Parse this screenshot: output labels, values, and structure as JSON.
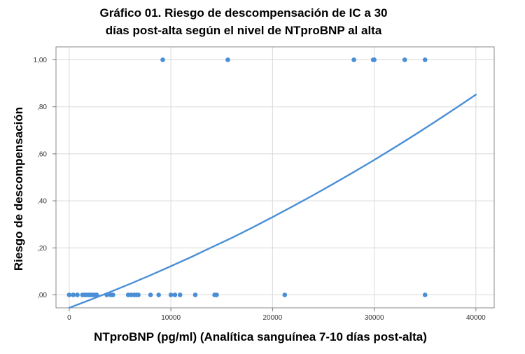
{
  "chart_data": {
    "type": "scatter",
    "title_lines": [
      "Gráfico 01. Riesgo de descompensación de IC a 30",
      "días post-alta según el nivel de NTproBNP al alta"
    ],
    "xlabel": "NTproBNP (pg/ml) (Analítica sanguínea 7-10 días post-alta)",
    "ylabel": "Riesgo de descompensación",
    "xlim": [
      -1300,
      41800
    ],
    "ylim": [
      -0.055,
      1.055
    ],
    "x_ticks": [
      0,
      10000,
      20000,
      30000,
      40000
    ],
    "x_tick_labels": [
      "0",
      "10000",
      "20000",
      "30000",
      "40000"
    ],
    "y_ticks": [
      0,
      0.2,
      0.4,
      0.6,
      0.8,
      1.0
    ],
    "y_tick_labels": [
      ",00",
      ",20",
      ",40",
      ",60",
      ",80",
      "1,00"
    ],
    "grid": true,
    "point_color": "#4a8fd6",
    "curve_color": "#4a8fd6",
    "points": [
      {
        "x": 0,
        "y": 0
      },
      {
        "x": 400,
        "y": 0
      },
      {
        "x": 800,
        "y": 0
      },
      {
        "x": 1300,
        "y": 0
      },
      {
        "x": 1500,
        "y": 0
      },
      {
        "x": 1700,
        "y": 0
      },
      {
        "x": 1900,
        "y": 0
      },
      {
        "x": 2100,
        "y": 0
      },
      {
        "x": 2300,
        "y": 0
      },
      {
        "x": 2500,
        "y": 0
      },
      {
        "x": 2700,
        "y": 0
      },
      {
        "x": 3700,
        "y": 0
      },
      {
        "x": 4100,
        "y": 0
      },
      {
        "x": 4300,
        "y": 0
      },
      {
        "x": 5800,
        "y": 0
      },
      {
        "x": 6100,
        "y": 0
      },
      {
        "x": 6400,
        "y": 0
      },
      {
        "x": 6600,
        "y": 0
      },
      {
        "x": 6800,
        "y": 0
      },
      {
        "x": 8000,
        "y": 0
      },
      {
        "x": 8800,
        "y": 0
      },
      {
        "x": 10000,
        "y": 0
      },
      {
        "x": 10400,
        "y": 0
      },
      {
        "x": 10900,
        "y": 0
      },
      {
        "x": 12400,
        "y": 0
      },
      {
        "x": 14300,
        "y": 0
      },
      {
        "x": 14500,
        "y": 0
      },
      {
        "x": 21200,
        "y": 0
      },
      {
        "x": 35000,
        "y": 0
      },
      {
        "x": 9200,
        "y": 1
      },
      {
        "x": 15600,
        "y": 1
      },
      {
        "x": 28000,
        "y": 1
      },
      {
        "x": 29900,
        "y": 1
      },
      {
        "x": 30000,
        "y": 1
      },
      {
        "x": 33000,
        "y": 1
      },
      {
        "x": 35000,
        "y": 1
      }
    ],
    "fit_curve": {
      "x": [
        0,
        2000,
        4000,
        6000,
        8000,
        10000,
        12000,
        14000,
        16000,
        18000,
        20000,
        22000,
        24000,
        26000,
        28000,
        30000,
        32000,
        34000,
        36000,
        38000,
        40000
      ],
      "y": [
        -0.055,
        -0.022,
        0.012,
        0.047,
        0.084,
        0.122,
        0.161,
        0.202,
        0.243,
        0.286,
        0.331,
        0.377,
        0.424,
        0.473,
        0.523,
        0.574,
        0.627,
        0.681,
        0.737,
        0.794,
        0.852
      ]
    }
  }
}
